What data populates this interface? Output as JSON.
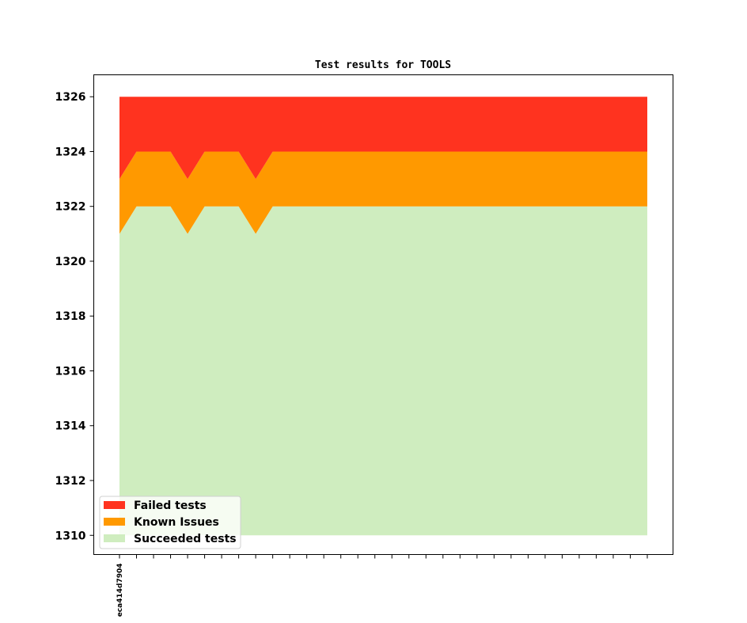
{
  "chart_data": {
    "type": "area",
    "title": "Test results for TOOLS",
    "xlabel": "",
    "ylabel": "",
    "ylim": [
      1309.3,
      1326.8
    ],
    "yticks": [
      1310,
      1312,
      1314,
      1316,
      1318,
      1320,
      1322,
      1324,
      1326
    ],
    "x_tick_count": 32,
    "x_tick_labels": [
      {
        "index": 0,
        "label": "eca414d7904"
      }
    ],
    "baseline": 1310,
    "series": [
      {
        "name": "Succeeded tests",
        "color": "#cfedbf",
        "values": [
          1321,
          1322,
          1322,
          1322,
          1321,
          1322,
          1322,
          1322,
          1321,
          1322,
          1322,
          1322,
          1322,
          1322,
          1322,
          1322,
          1322,
          1322,
          1322,
          1322,
          1322,
          1322,
          1322,
          1322,
          1322,
          1322,
          1322,
          1322,
          1322,
          1322,
          1322,
          1322
        ]
      },
      {
        "name": "Known Issues",
        "color": "#ff9900",
        "values": [
          2,
          2,
          2,
          2,
          2,
          2,
          2,
          2,
          2,
          2,
          2,
          2,
          2,
          2,
          2,
          2,
          2,
          2,
          2,
          2,
          2,
          2,
          2,
          2,
          2,
          2,
          2,
          2,
          2,
          2,
          2,
          2
        ]
      },
      {
        "name": "Failed tests",
        "color": "#ff331f",
        "values": [
          3,
          2,
          2,
          2,
          3,
          2,
          2,
          2,
          3,
          2,
          2,
          2,
          2,
          2,
          2,
          2,
          2,
          2,
          2,
          2,
          2,
          2,
          2,
          2,
          2,
          2,
          2,
          2,
          2,
          2,
          2,
          2
        ]
      }
    ],
    "legend": {
      "placement": "lower-left",
      "entries": [
        {
          "label": "Failed tests",
          "color": "#ff331f"
        },
        {
          "label": "Known Issues",
          "color": "#ff9900"
        },
        {
          "label": "Succeeded tests",
          "color": "#cfedbf"
        }
      ]
    },
    "grid": false
  }
}
